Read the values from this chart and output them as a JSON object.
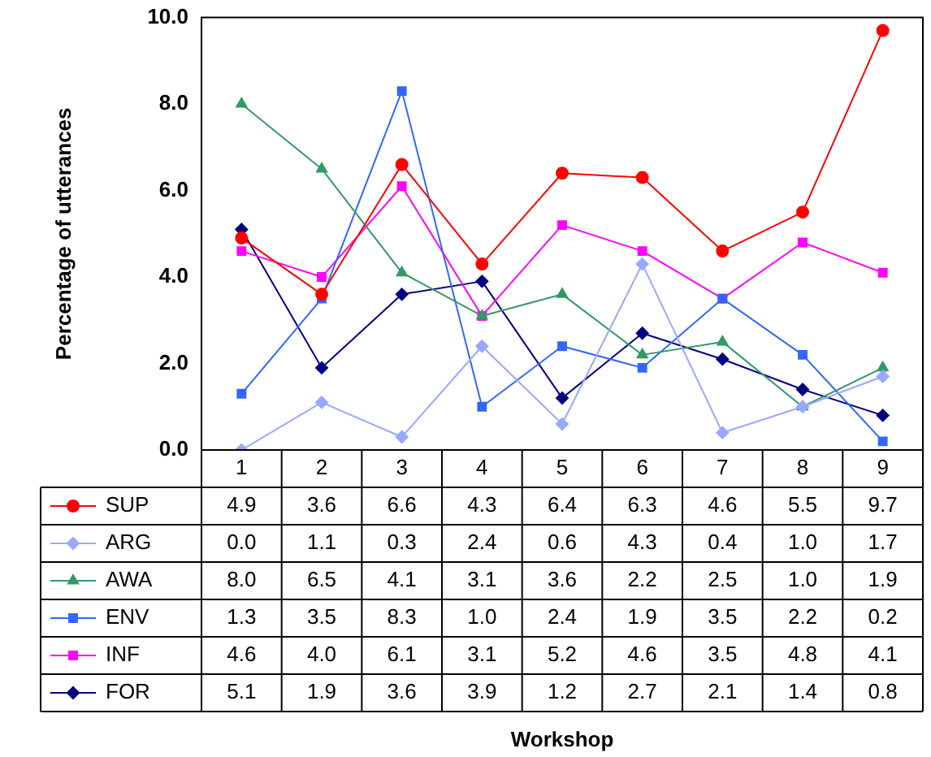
{
  "chart_data": {
    "type": "line",
    "annotations": [
      "Workshop"
    ],
    "ylabel": "Percentage of utterances",
    "categories": [
      "1",
      "2",
      "3",
      "4",
      "5",
      "6",
      "7",
      "8",
      "9"
    ],
    "ylim": [
      0,
      10
    ],
    "yticks": [
      {
        "value": 0,
        "label": "0.0"
      },
      {
        "value": 2,
        "label": "2.0"
      },
      {
        "value": 4,
        "label": "4.0"
      },
      {
        "value": 6,
        "label": "6.0"
      },
      {
        "value": 8,
        "label": "8.0"
      },
      {
        "value": 10,
        "label": "10.0"
      }
    ],
    "grid": false,
    "legend": "bottom",
    "line_style": "solid",
    "series": [
      {
        "name": "SUP",
        "color": "#ff0000",
        "marker": "circle",
        "values": [
          4.9,
          3.6,
          6.6,
          4.3,
          6.4,
          6.3,
          4.6,
          5.5,
          9.7
        ],
        "value_labels": [
          "4.9",
          "3.6",
          "6.6",
          "4.3",
          "6.4",
          "6.3",
          "4.6",
          "5.5",
          "9.7"
        ]
      },
      {
        "name": "ARG",
        "color": "#99a8ff",
        "marker": "diamond",
        "values": [
          0.0,
          1.1,
          0.3,
          2.4,
          0.6,
          4.3,
          0.4,
          1.0,
          1.7
        ],
        "value_labels": [
          "0.0",
          "1.1",
          "0.3",
          "2.4",
          "0.6",
          "4.3",
          "0.4",
          "1.0",
          "1.7"
        ]
      },
      {
        "name": "AWA",
        "color": "#339966",
        "marker": "triangle",
        "values": [
          8.0,
          6.5,
          4.1,
          3.1,
          3.6,
          2.2,
          2.5,
          1.0,
          1.9
        ],
        "value_labels": [
          "8.0",
          "6.5",
          "4.1",
          "3.1",
          "3.6",
          "2.2",
          "2.5",
          "1.0",
          "1.9"
        ]
      },
      {
        "name": "ENV",
        "color": "#3366ff",
        "marker": "square",
        "values": [
          1.3,
          3.5,
          8.3,
          1.0,
          2.4,
          1.9,
          3.5,
          2.2,
          0.2
        ],
        "value_labels": [
          "1.3",
          "3.5",
          "8.3",
          "1.0",
          "2.4",
          "1.9",
          "3.5",
          "2.2",
          "0.2"
        ]
      },
      {
        "name": "INF",
        "color": "#ff00ff",
        "marker": "square",
        "values": [
          4.6,
          4.0,
          6.1,
          3.1,
          5.2,
          4.6,
          3.5,
          4.8,
          4.1
        ],
        "value_labels": [
          "4.6",
          "4.0",
          "6.1",
          "3.1",
          "5.2",
          "4.6",
          "3.5",
          "4.8",
          "4.1"
        ]
      },
      {
        "name": "FOR",
        "color": "#000080",
        "marker": "diamond",
        "values": [
          5.1,
          1.9,
          3.6,
          3.9,
          1.2,
          2.7,
          2.1,
          1.4,
          0.8
        ],
        "value_labels": [
          "5.1",
          "1.9",
          "3.6",
          "3.9",
          "1.2",
          "2.7",
          "2.1",
          "1.4",
          "0.8"
        ]
      }
    ]
  }
}
